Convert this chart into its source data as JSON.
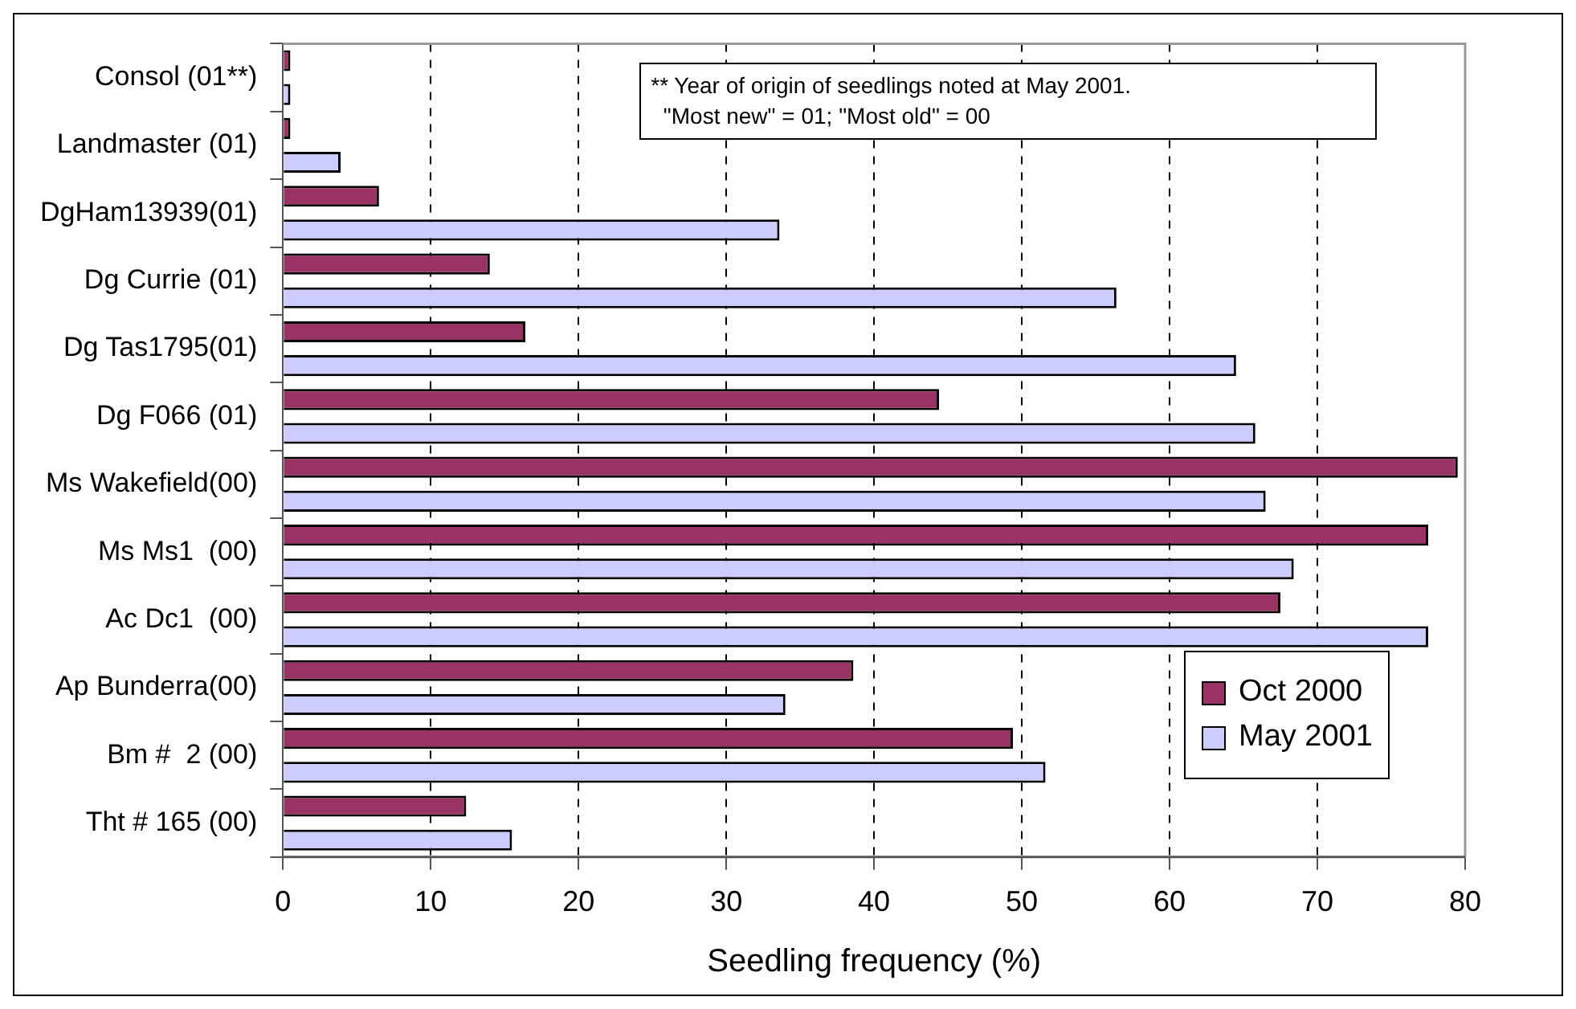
{
  "chart_data": {
    "type": "bar",
    "orientation": "horizontal",
    "xlabel": "Seedling frequency (%)",
    "categories": [
      "Consol (01**)",
      "Landmaster (01)",
      "DgHam13939(01)",
      "Dg Currie (01)",
      "Dg Tas1795(01)",
      "Dg F066 (01)",
      "Ms Wakefield(00)",
      "Ms Ms1  (00)",
      "Ac Dc1  (00)",
      "Ap Bunderra(00)",
      "Bm #  2 (00)",
      "Tht # 165 (00)"
    ],
    "series": [
      {
        "name": "Oct 2000",
        "color": "#993366",
        "values": [
          0.5,
          0.5,
          6.5,
          14,
          16.4,
          44.4,
          79.5,
          77.5,
          67.5,
          38.6,
          49.4,
          12.4
        ]
      },
      {
        "name": "May 2001",
        "color": "#ccccff",
        "values": [
          0.5,
          3.9,
          33.6,
          56.4,
          64.5,
          65.8,
          66.5,
          68.4,
          77.5,
          34,
          51.6,
          15.5
        ]
      }
    ],
    "xlim": [
      0,
      80
    ],
    "xticks": [
      0,
      10,
      20,
      30,
      40,
      50,
      60,
      70,
      80
    ],
    "grid": "x",
    "legend": "bottom right",
    "annotations": [
      "** Year of origin of seedlings noted at May 2001.\n  \"Most new\" = 01; \"Most old\" = 00"
    ]
  }
}
